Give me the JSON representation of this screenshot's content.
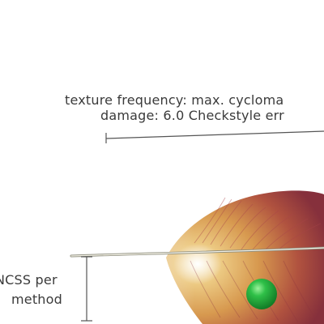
{
  "annotation": {
    "line1": "texture frequency: max. cycloma",
    "line2": "damage: 6.0 Checkstyle err",
    "stem_label_1": "NCSS per",
    "stem_label_2": "method"
  },
  "colors": {
    "text": "#3a3a3a",
    "vane_dark": "#8a2f3c",
    "vane_mid": "#c9704a",
    "vane_light": "#e2b35a",
    "ball": "#1faa3a"
  }
}
